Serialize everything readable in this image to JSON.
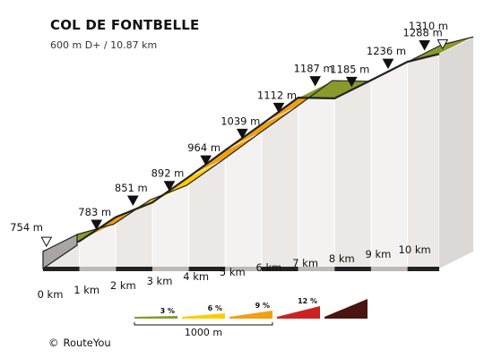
{
  "title": "COL DE FONTBELLE",
  "subtitle": "600 m D+ / 10.87 km",
  "copyright": {
    "symbol": "©",
    "brand": "RouteYou"
  },
  "colors": {
    "grade_3": "#8a9a2a",
    "grade_6": "#ffcc00",
    "grade_9": "#f0a010",
    "grade_12": "#cc2222",
    "grade_max": "#4a1510",
    "side_wall": "#ebe8e6",
    "outline": "#222222"
  },
  "chart_data": {
    "type": "area",
    "title": "COL DE FONTBELLE",
    "subtitle": "600 m D+ / 10.87 km",
    "x_unit": "km",
    "y_unit": "m",
    "distance_km": [
      0,
      1,
      2,
      3,
      4,
      5,
      6,
      7,
      8,
      9,
      10,
      10.87
    ],
    "distance_labels": [
      "0 km",
      "1 km",
      "2 km",
      "3 km",
      "4 km",
      "5 km",
      "6 km",
      "7 km",
      "8 km",
      "9 km",
      "10 km"
    ],
    "elevation_m": [
      754,
      783,
      851,
      892,
      964,
      1039,
      1112,
      1187,
      1185,
      1236,
      1288,
      1310
    ],
    "elevation_labels": [
      "754 m",
      "783 m",
      "851 m",
      "892 m",
      "964 m",
      "1039 m",
      "1112 m",
      "1187 m",
      "1185 m",
      "1236 m",
      "1288 m",
      "1310 m"
    ],
    "segment_grade_class": [
      "3",
      "9",
      "6",
      "6",
      "9",
      "9",
      "9",
      "3",
      "6",
      "6",
      "3"
    ],
    "endpoints": {
      "start": "754 m",
      "end": "1310 m"
    },
    "legend": {
      "items": [
        {
          "label": "3 %",
          "class": "3"
        },
        {
          "label": "6 %",
          "class": "6"
        },
        {
          "label": "9 %",
          "class": "9"
        },
        {
          "label": "12 %",
          "class": "12"
        },
        {
          "label": "",
          "class": "max"
        }
      ],
      "scale_label": "1000 m"
    }
  }
}
